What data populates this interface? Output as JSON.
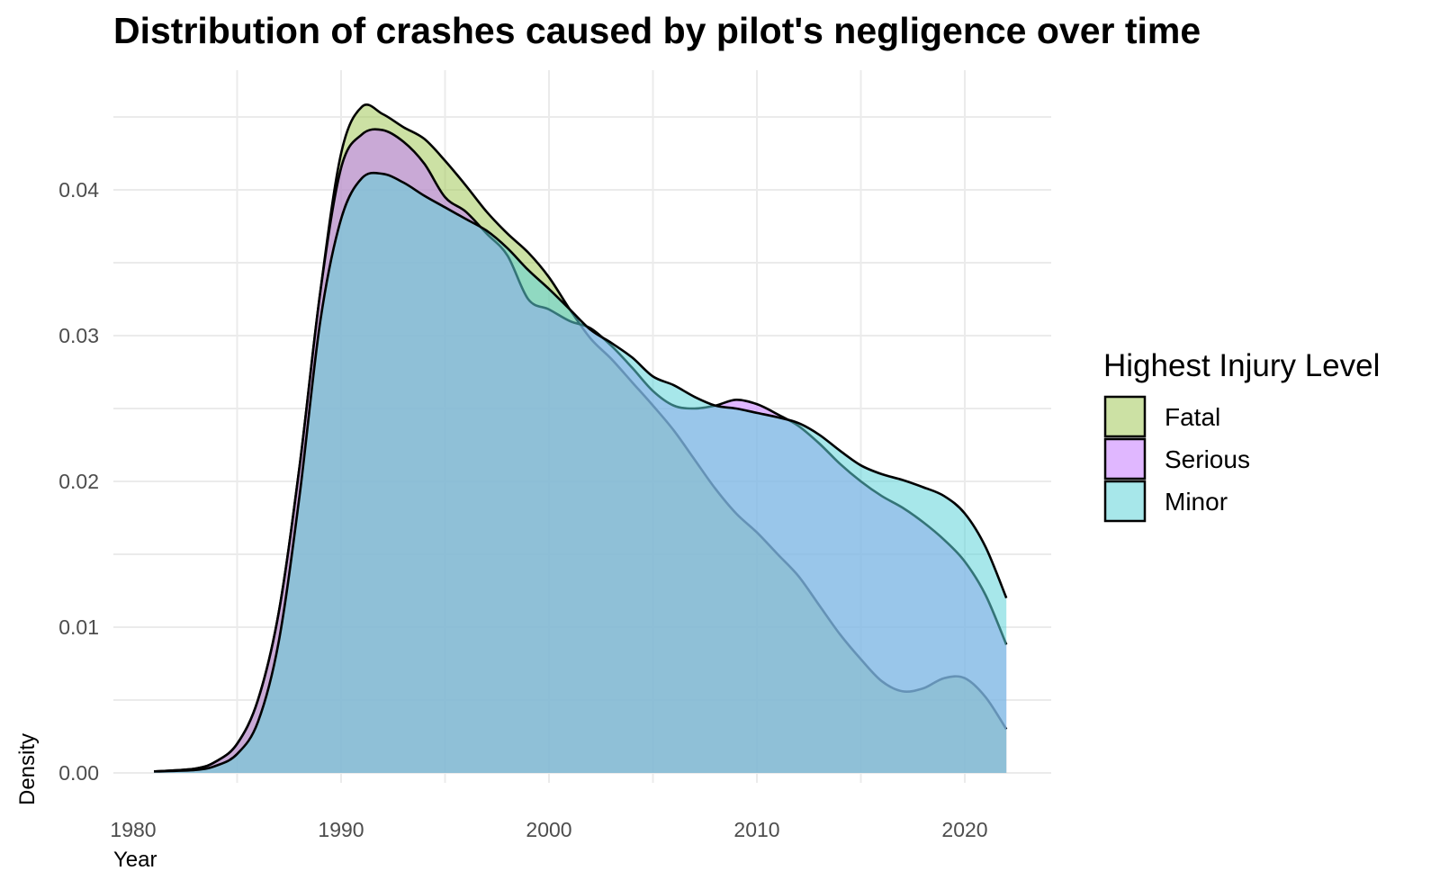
{
  "chart_data": {
    "type": "area",
    "subtype": "density",
    "title": "Distribution of crashes caused by pilot's negligence over time",
    "xlabel": "Year",
    "ylabel": "Density",
    "xlim": [
      1977,
      2024
    ],
    "ylim": [
      0,
      0.047
    ],
    "x_ticks": [
      1980,
      1990,
      2000,
      2010,
      2020
    ],
    "x_tick_labels": [
      "1980",
      "1990",
      "2000",
      "2010",
      "2020"
    ],
    "y_ticks": [
      0.0,
      0.01,
      0.02,
      0.03,
      0.04
    ],
    "y_tick_labels": [
      "0.00",
      "0.01",
      "0.02",
      "0.03",
      "0.04"
    ],
    "grid": true,
    "legend": {
      "title": "Highest Injury Level",
      "position": "right",
      "entries": [
        "Fatal",
        "Serious",
        "Minor"
      ]
    },
    "series": [
      {
        "name": "Fatal",
        "color": "#a3c85a",
        "x": [
          1981,
          1983,
          1984,
          1985,
          1986,
          1987,
          1988,
          1989,
          1990,
          1991,
          1992,
          1993,
          1994,
          1995,
          1996,
          1997,
          1998,
          1999,
          2000,
          2001,
          2002,
          2003,
          2004,
          2005,
          2006,
          2007,
          2008,
          2009,
          2010,
          2011,
          2012,
          2013,
          2014,
          2015,
          2016,
          2017,
          2018,
          2019,
          2020,
          2021,
          2022
        ],
        "values": [
          0.0001,
          0.0003,
          0.0008,
          0.002,
          0.005,
          0.011,
          0.021,
          0.033,
          0.0425,
          0.0457,
          0.0452,
          0.0443,
          0.0435,
          0.042,
          0.0403,
          0.0385,
          0.037,
          0.0357,
          0.034,
          0.0318,
          0.0298,
          0.0284,
          0.0268,
          0.0252,
          0.0235,
          0.0215,
          0.0195,
          0.0178,
          0.0165,
          0.015,
          0.0135,
          0.0115,
          0.0095,
          0.0078,
          0.0063,
          0.0056,
          0.0058,
          0.0065,
          0.0065,
          0.0052,
          0.003
        ]
      },
      {
        "name": "Serious",
        "color": "#c77cff",
        "x": [
          1981,
          1983,
          1984,
          1985,
          1986,
          1987,
          1988,
          1989,
          1990,
          1991,
          1992,
          1993,
          1994,
          1995,
          1996,
          1997,
          1998,
          1999,
          2000,
          2001,
          2002,
          2003,
          2004,
          2005,
          2006,
          2007,
          2008,
          2009,
          2010,
          2011,
          2012,
          2013,
          2014,
          2015,
          2016,
          2017,
          2018,
          2019,
          2020,
          2021,
          2022
        ],
        "values": [
          0.0001,
          0.0003,
          0.0008,
          0.002,
          0.005,
          0.011,
          0.021,
          0.033,
          0.0415,
          0.0438,
          0.0441,
          0.0433,
          0.0418,
          0.0395,
          0.0385,
          0.037,
          0.0355,
          0.0325,
          0.0318,
          0.031,
          0.0305,
          0.0293,
          0.0278,
          0.0262,
          0.0252,
          0.025,
          0.0252,
          0.0256,
          0.0253,
          0.0246,
          0.0238,
          0.0226,
          0.0212,
          0.02,
          0.019,
          0.0182,
          0.0172,
          0.016,
          0.0145,
          0.0122,
          0.0088
        ]
      },
      {
        "name": "Minor",
        "color": "#5ed3d8",
        "x": [
          1981,
          1983,
          1984,
          1985,
          1986,
          1987,
          1988,
          1989,
          1990,
          1991,
          1992,
          1993,
          1994,
          1995,
          1996,
          1997,
          1998,
          1999,
          2000,
          2001,
          2002,
          2003,
          2004,
          2005,
          2006,
          2007,
          2008,
          2009,
          2010,
          2011,
          2012,
          2013,
          2014,
          2015,
          2016,
          2017,
          2018,
          2019,
          2020,
          2021,
          2022
        ],
        "values": [
          0.0001,
          0.0002,
          0.0005,
          0.0013,
          0.0035,
          0.009,
          0.019,
          0.031,
          0.038,
          0.0408,
          0.0411,
          0.0405,
          0.0396,
          0.0388,
          0.038,
          0.0372,
          0.036,
          0.0345,
          0.0332,
          0.0318,
          0.0304,
          0.0295,
          0.0285,
          0.0272,
          0.0266,
          0.0258,
          0.0252,
          0.025,
          0.0247,
          0.0244,
          0.024,
          0.0232,
          0.0221,
          0.0211,
          0.0205,
          0.0201,
          0.0196,
          0.019,
          0.0178,
          0.0155,
          0.012
        ]
      }
    ]
  }
}
